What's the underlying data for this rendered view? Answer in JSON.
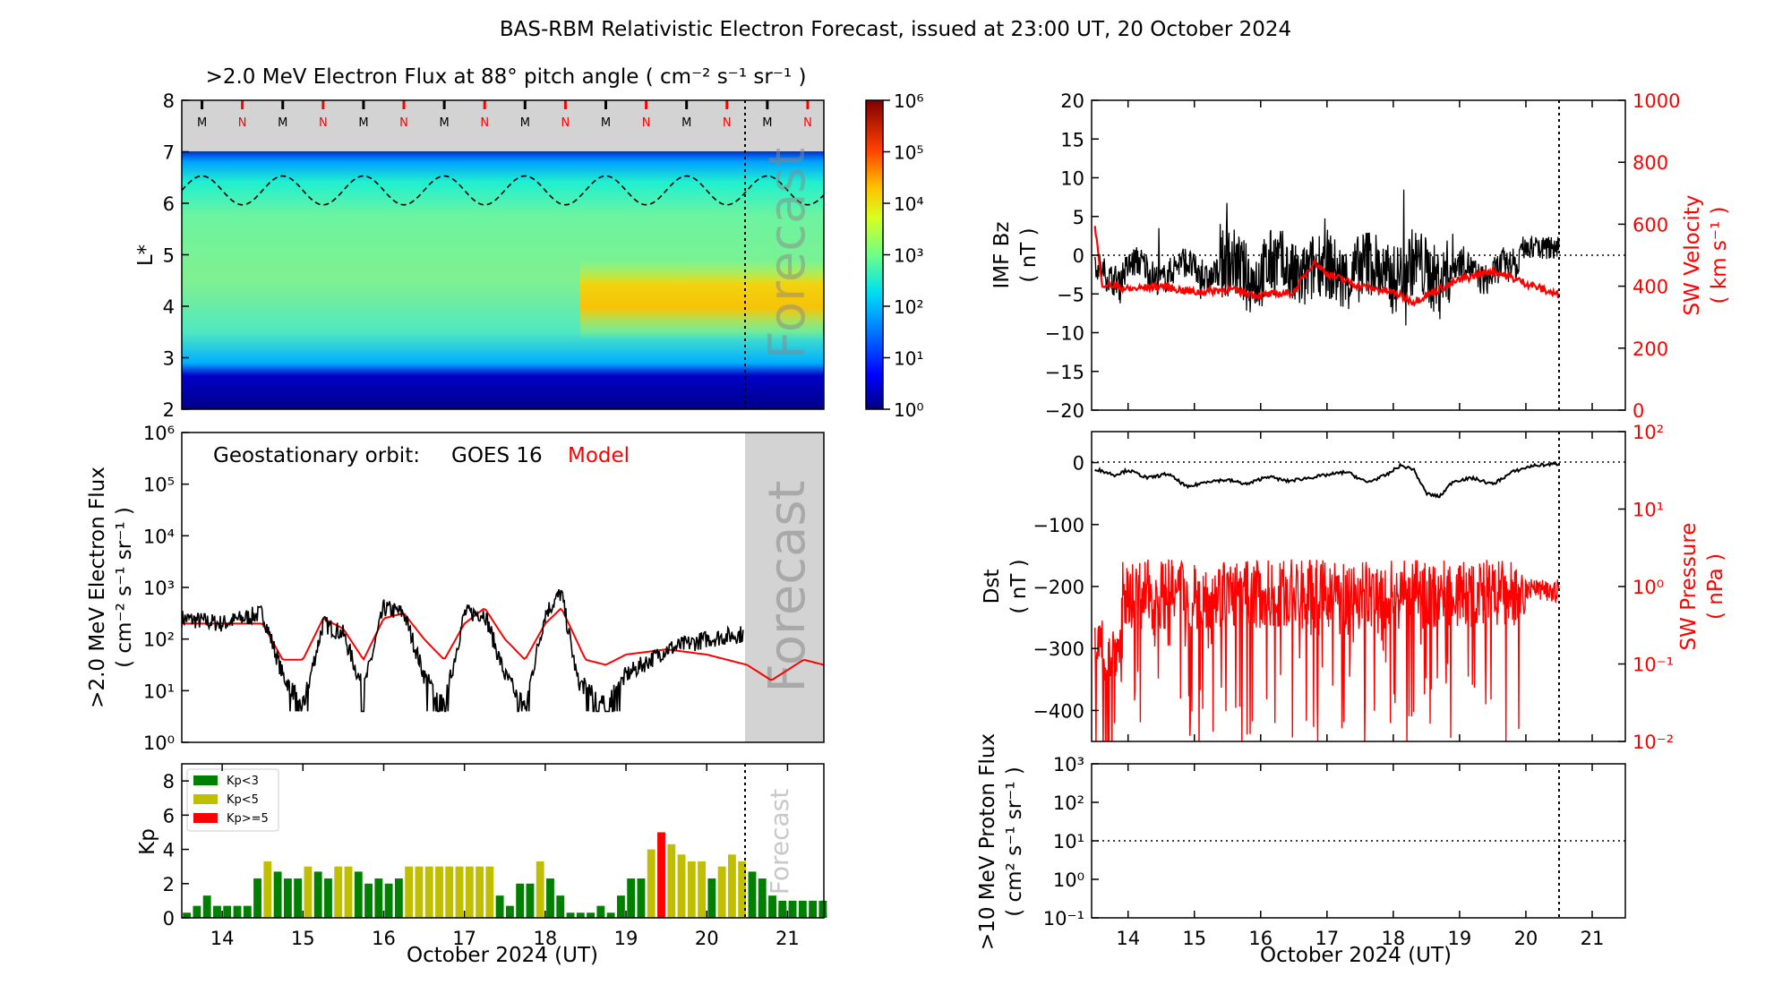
{
  "figure": {
    "title": "BAS-RBM Relativistic Electron Forecast, issued at 23:00 UT, 20 October 2024",
    "forecast_label": "Forecast",
    "forecast_start_day": 20.5
  },
  "chart_data": [
    {
      "id": "flux_map",
      "type": "heatmap",
      "title": ">2.0 MeV Electron Flux at 88° pitch angle ( cm⁻² s⁻¹ sr⁻¹ )",
      "ylabel": "L*",
      "x_range": [
        13.5,
        21.45
      ],
      "y_range": [
        2,
        8
      ],
      "y_ticks": [
        "2",
        "3",
        "4",
        "5",
        "6",
        "7",
        "8"
      ],
      "colorbar_ticks": [
        "10⁰",
        "10¹",
        "10²",
        "10³",
        "10⁴",
        "10⁵",
        "10⁶"
      ],
      "colorbar_range_log10": [
        0,
        6
      ],
      "local_time_marks": [
        "M",
        "N",
        "M",
        "N",
        "M",
        "N",
        "M",
        "N",
        "M",
        "N",
        "M",
        "N",
        "M",
        "N",
        "M",
        "N"
      ],
      "local_time_days": [
        13.75,
        14.25,
        14.75,
        15.25,
        15.75,
        16.25,
        16.75,
        17.25,
        17.75,
        18.25,
        18.75,
        19.25,
        19.75,
        20.25,
        20.75,
        21.25
      ],
      "geo_L_curve": {
        "mean": 6.25,
        "amplitude": 0.28,
        "period_days": 1
      }
    },
    {
      "id": "goes_flux",
      "type": "line",
      "annotation_prefix": "Geostationary orbit:",
      "annotation_satellite": "GOES 16",
      "annotation_model": "Model",
      "ylabel_line1": ">2.0 MeV Electron Flux",
      "ylabel_line2": "( cm⁻² s⁻¹ sr⁻¹ )",
      "x_range": [
        13.5,
        21.45
      ],
      "y_log_range": [
        0,
        6
      ],
      "y_ticks": [
        "10⁰",
        "10¹",
        "10²",
        "10³",
        "10⁴",
        "10⁵",
        "10⁶"
      ],
      "series": [
        {
          "name": "GOES 16",
          "color": "#000000",
          "days": [
            13.5,
            14.0,
            14.5,
            14.75,
            15.0,
            15.25,
            15.5,
            15.75,
            16.0,
            16.25,
            16.5,
            16.75,
            17.0,
            17.25,
            17.5,
            17.75,
            18.0,
            18.2,
            18.4,
            18.75,
            19.0,
            19.5,
            20.0,
            20.45
          ],
          "log10_flux": [
            2.4,
            2.3,
            2.5,
            1.3,
            0.7,
            2.3,
            2.1,
            1.0,
            2.6,
            2.5,
            1.3,
            0.7,
            2.5,
            2.5,
            1.3,
            0.7,
            2.5,
            2.9,
            1.2,
            0.7,
            1.3,
            1.8,
            2.0,
            2.1
          ]
        },
        {
          "name": "Model",
          "color": "#ff0000",
          "days": [
            13.5,
            14.0,
            14.5,
            14.75,
            15.0,
            15.25,
            15.5,
            15.75,
            16.0,
            16.25,
            16.5,
            16.75,
            17.0,
            17.25,
            17.5,
            17.75,
            18.0,
            18.2,
            18.5,
            18.75,
            19.0,
            19.5,
            20.0,
            20.5,
            20.8,
            21.2,
            21.45
          ],
          "log10_flux": [
            2.3,
            2.3,
            2.3,
            1.6,
            1.6,
            2.4,
            2.2,
            1.6,
            2.4,
            2.5,
            2.0,
            1.6,
            2.3,
            2.6,
            2.0,
            1.6,
            2.3,
            2.6,
            1.6,
            1.5,
            1.7,
            1.8,
            1.7,
            1.5,
            1.2,
            1.6,
            1.5
          ]
        }
      ]
    },
    {
      "id": "kp",
      "type": "bar",
      "ylabel": "Kp",
      "xlabel": "October 2024 (UT)",
      "x_range": [
        13.5,
        21.45
      ],
      "y_range": [
        0,
        9
      ],
      "y_ticks": [
        "0",
        "2",
        "4",
        "6",
        "8"
      ],
      "x_ticks": [
        "14",
        "15",
        "16",
        "17",
        "18",
        "19",
        "20",
        "21"
      ],
      "legend": [
        {
          "label": "Kp<3",
          "color": "#008000"
        },
        {
          "label": "Kp<5",
          "color": "#bfbf00"
        },
        {
          "label": "Kp>=5",
          "color": "#ff0000"
        }
      ],
      "bar_width_days": 0.125,
      "start_day": 13.5,
      "values": [
        0.3,
        0.7,
        1.3,
        0.7,
        0.7,
        0.7,
        0.7,
        2.3,
        3.3,
        2.7,
        2.3,
        2.3,
        3.0,
        2.7,
        2.3,
        3.0,
        3.0,
        2.7,
        2.0,
        2.3,
        2.0,
        2.3,
        3.0,
        3.0,
        3.0,
        3.0,
        3.0,
        3.0,
        3.0,
        3.0,
        3.0,
        1.3,
        0.7,
        2.0,
        2.0,
        3.3,
        2.3,
        1.3,
        0.3,
        0.3,
        0.3,
        0.7,
        0.3,
        1.3,
        2.3,
        2.3,
        4.0,
        5.0,
        4.3,
        3.7,
        3.3,
        3.3,
        2.3,
        3.0,
        3.7,
        3.3,
        2.7,
        2.3,
        1.3,
        0.7,
        0.7,
        0.3,
        0.3,
        0.3
      ],
      "forecast_values": [
        1.0,
        1.0,
        1.0,
        1.0,
        1.0,
        1.0,
        1.0,
        1.0
      ]
    },
    {
      "id": "imf_sw",
      "type": "line",
      "ylabel_left_line1": "IMF Bz",
      "ylabel_left_line2": "( nT )",
      "ylabel_right_line1": "SW Velocity",
      "ylabel_right_line2": "( km s⁻¹ )",
      "x_range": [
        13.45,
        21.5
      ],
      "y_left_range": [
        -20,
        20
      ],
      "y_right_range": [
        0,
        1000
      ],
      "y_left_ticks": [
        "−20",
        "−15",
        "−10",
        "−5",
        "0",
        "5",
        "10",
        "15",
        "20"
      ],
      "y_right_ticks": [
        "0",
        "200",
        "400",
        "600",
        "800",
        "1000"
      ],
      "series": [
        {
          "name": "IMF Bz",
          "color": "#000000",
          "range_nT": [
            -11,
            9
          ],
          "mean_nT": -2
        },
        {
          "name": "SW Velocity",
          "color": "#ff0000",
          "days": [
            13.5,
            13.6,
            14.0,
            14.5,
            15.0,
            15.5,
            16.0,
            16.5,
            16.8,
            17.0,
            17.5,
            18.0,
            18.3,
            18.6,
            19.0,
            19.5,
            20.0,
            20.5
          ],
          "km_per_s": [
            600,
            410,
            390,
            400,
            380,
            390,
            370,
            380,
            480,
            440,
            400,
            380,
            350,
            380,
            420,
            450,
            410,
            370
          ]
        }
      ]
    },
    {
      "id": "dst_pressure",
      "type": "line",
      "ylabel_left_line1": "Dst",
      "ylabel_left_line2": "( nT )",
      "ylabel_right_line1": "SW Pressure",
      "ylabel_right_line2": "( nPa )",
      "x_range": [
        13.45,
        21.5
      ],
      "y_left_range": [
        -450,
        50
      ],
      "y_right_log_range": [
        -2,
        2
      ],
      "y_left_ticks": [
        "−400",
        "−300",
        "−200",
        "−100",
        "0"
      ],
      "y_right_ticks": [
        "10⁻²",
        "10⁻¹",
        "10⁰",
        "10¹",
        "10²"
      ],
      "series": [
        {
          "name": "Dst",
          "color": "#000000",
          "days": [
            13.5,
            13.8,
            14.0,
            14.3,
            14.6,
            14.9,
            15.2,
            15.5,
            15.8,
            16.1,
            16.4,
            16.7,
            17.0,
            17.3,
            17.6,
            17.9,
            18.1,
            18.3,
            18.5,
            18.7,
            18.9,
            19.2,
            19.5,
            19.8,
            20.1,
            20.5
          ],
          "nT": [
            -10,
            -20,
            -12,
            -25,
            -18,
            -40,
            -30,
            -28,
            -35,
            -22,
            -30,
            -25,
            -20,
            -15,
            -32,
            -20,
            -5,
            -10,
            -50,
            -55,
            -30,
            -25,
            -35,
            -15,
            -5,
            -2
          ]
        },
        {
          "name": "SW Pressure",
          "color": "#ff0000",
          "typical_log10_nPa": 0.0
        }
      ]
    },
    {
      "id": "proton_flux",
      "type": "line",
      "ylabel_line1": ">10 MeV Proton Flux",
      "ylabel_line2": "( cm² s⁻¹ sr⁻¹ )",
      "xlabel": "October 2024 (UT)",
      "x_range": [
        13.45,
        21.5
      ],
      "y_log_range": [
        -1,
        3
      ],
      "y_ticks": [
        "10⁻¹",
        "10⁰",
        "10¹",
        "10²",
        "10³"
      ],
      "x_ticks": [
        "14",
        "15",
        "16",
        "17",
        "18",
        "19",
        "20",
        "21"
      ],
      "threshold_log10": 1
    }
  ]
}
